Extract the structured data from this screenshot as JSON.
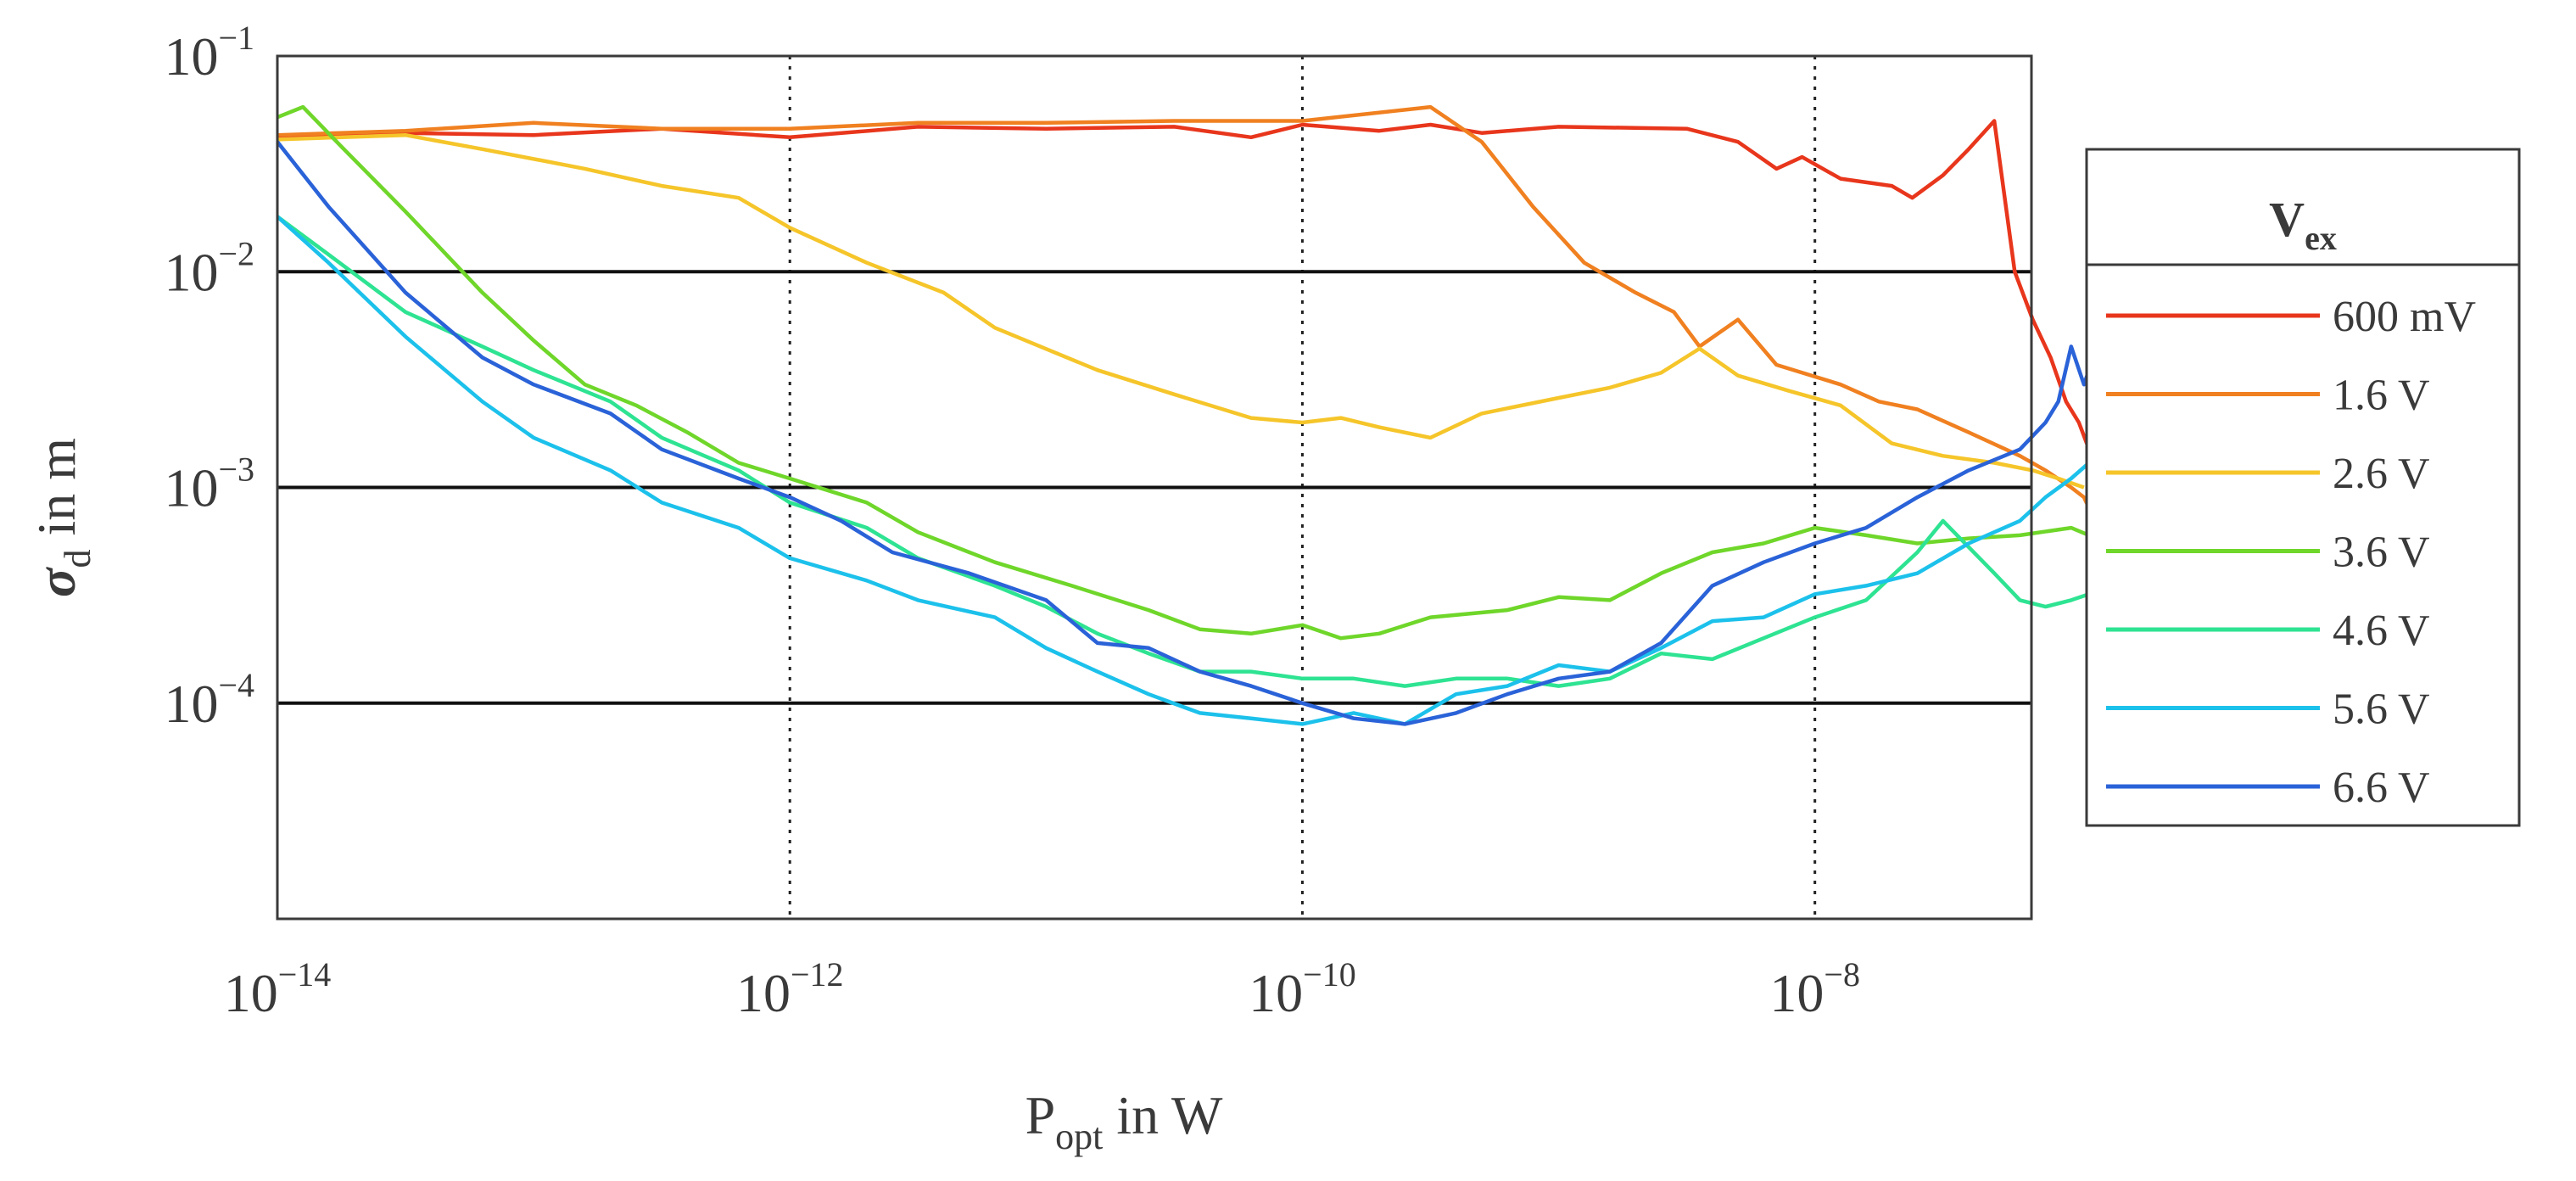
{
  "chart_data": {
    "type": "line",
    "title": "",
    "xlabel": {
      "main": "P",
      "sub": "opt",
      "rest": " in W"
    },
    "ylabel": {
      "sym": "σ",
      "sub": "d",
      "rest": " in m"
    },
    "x_scale": "log",
    "y_scale": "log",
    "xlim": [
      1e-14,
      7e-08
    ],
    "ylim": [
      1e-05,
      0.1
    ],
    "x_ticks": [
      {
        "value": 1e-14,
        "base": "10",
        "exp": "−14"
      },
      {
        "value": 1e-12,
        "base": "10",
        "exp": "−12"
      },
      {
        "value": 1e-10,
        "base": "10",
        "exp": "−10"
      },
      {
        "value": 1e-08,
        "base": "10",
        "exp": "−8"
      }
    ],
    "y_ticks": [
      {
        "value": 0.0001,
        "base": "10",
        "exp": "−4"
      },
      {
        "value": 0.001,
        "base": "10",
        "exp": "−3"
      },
      {
        "value": 0.01,
        "base": "10",
        "exp": "−2"
      },
      {
        "value": 0.1,
        "base": "10",
        "exp": "−1"
      }
    ],
    "grid": {
      "x": "dotted",
      "y": "solid"
    },
    "legend": {
      "position": "right-outside",
      "title_main": "V",
      "title_sub": "ex",
      "entries": [
        "600 mV",
        "1.6 V",
        "2.6 V",
        "3.6 V",
        "4.6 V",
        "5.6 V",
        "6.6 V"
      ]
    },
    "series": [
      {
        "name": "600 mV",
        "color": "#e8361c",
        "points": [
          [
            -14.0,
            0.042
          ],
          [
            -13.5,
            0.044
          ],
          [
            -13.0,
            0.043
          ],
          [
            -12.5,
            0.046
          ],
          [
            -12.0,
            0.042
          ],
          [
            -11.5,
            0.047
          ],
          [
            -11.0,
            0.046
          ],
          [
            -10.5,
            0.047
          ],
          [
            -10.2,
            0.042
          ],
          [
            -10.0,
            0.048
          ],
          [
            -9.7,
            0.045
          ],
          [
            -9.5,
            0.048
          ],
          [
            -9.3,
            0.044
          ],
          [
            -9.0,
            0.047
          ],
          [
            -8.5,
            0.046
          ],
          [
            -8.3,
            0.04
          ],
          [
            -8.15,
            0.03
          ],
          [
            -8.05,
            0.034
          ],
          [
            -7.9,
            0.027
          ],
          [
            -7.7,
            0.025
          ],
          [
            -7.62,
            0.022
          ],
          [
            -7.5,
            0.028
          ],
          [
            -7.4,
            0.037
          ],
          [
            -7.3,
            0.05
          ],
          [
            -7.22,
            0.01
          ],
          [
            -7.15,
            0.006
          ],
          [
            -7.08,
            0.004
          ],
          [
            -7.02,
            0.0025
          ],
          [
            -6.97,
            0.002
          ],
          [
            -6.93,
            0.0015
          ]
        ]
      },
      {
        "name": "1.6 V",
        "color": "#f08020",
        "points": [
          [
            -14.0,
            0.043
          ],
          [
            -13.5,
            0.045
          ],
          [
            -13.0,
            0.049
          ],
          [
            -12.5,
            0.046
          ],
          [
            -12.0,
            0.046
          ],
          [
            -11.5,
            0.049
          ],
          [
            -11.0,
            0.049
          ],
          [
            -10.5,
            0.05
          ],
          [
            -10.0,
            0.05
          ],
          [
            -9.5,
            0.058
          ],
          [
            -9.3,
            0.04
          ],
          [
            -9.1,
            0.02
          ],
          [
            -8.9,
            0.011
          ],
          [
            -8.7,
            0.008
          ],
          [
            -8.55,
            0.0065
          ],
          [
            -8.45,
            0.0045
          ],
          [
            -8.3,
            0.006
          ],
          [
            -8.15,
            0.0037
          ],
          [
            -7.9,
            0.003
          ],
          [
            -7.75,
            0.0025
          ],
          [
            -7.6,
            0.0023
          ],
          [
            -7.4,
            0.0018
          ],
          [
            -7.2,
            0.0014
          ],
          [
            -7.1,
            0.0012
          ],
          [
            -7.0,
            0.001
          ],
          [
            -6.95,
            0.0009
          ],
          [
            -6.93,
            0.0008
          ]
        ]
      },
      {
        "name": "2.6 V",
        "color": "#f5c52a",
        "points": [
          [
            -14.0,
            0.041
          ],
          [
            -13.5,
            0.043
          ],
          [
            -13.2,
            0.037
          ],
          [
            -12.8,
            0.03
          ],
          [
            -12.5,
            0.025
          ],
          [
            -12.2,
            0.022
          ],
          [
            -12.0,
            0.016
          ],
          [
            -11.7,
            0.011
          ],
          [
            -11.4,
            0.008
          ],
          [
            -11.2,
            0.0055
          ],
          [
            -10.8,
            0.0035
          ],
          [
            -10.5,
            0.0027
          ],
          [
            -10.2,
            0.0021
          ],
          [
            -10.0,
            0.002
          ],
          [
            -9.85,
            0.0021
          ],
          [
            -9.7,
            0.0019
          ],
          [
            -9.5,
            0.0017
          ],
          [
            -9.3,
            0.0022
          ],
          [
            -9.0,
            0.0026
          ],
          [
            -8.8,
            0.0029
          ],
          [
            -8.6,
            0.0034
          ],
          [
            -8.45,
            0.0044
          ],
          [
            -8.3,
            0.0033
          ],
          [
            -8.1,
            0.0028
          ],
          [
            -7.9,
            0.0024
          ],
          [
            -7.7,
            0.0016
          ],
          [
            -7.5,
            0.0014
          ],
          [
            -7.3,
            0.0013
          ],
          [
            -7.15,
            0.0012
          ],
          [
            -7.05,
            0.0011
          ],
          [
            -6.95,
            0.001
          ]
        ]
      },
      {
        "name": "3.6 V",
        "color": "#6fd62a",
        "points": [
          [
            -14.0,
            0.052
          ],
          [
            -13.9,
            0.058
          ],
          [
            -13.75,
            0.038
          ],
          [
            -13.5,
            0.019
          ],
          [
            -13.2,
            0.008
          ],
          [
            -13.0,
            0.0048
          ],
          [
            -12.8,
            0.003
          ],
          [
            -12.6,
            0.0024
          ],
          [
            -12.4,
            0.0018
          ],
          [
            -12.2,
            0.0013
          ],
          [
            -12.0,
            0.0011
          ],
          [
            -11.7,
            0.00085
          ],
          [
            -11.5,
            0.00062
          ],
          [
            -11.2,
            0.00045
          ],
          [
            -10.9,
            0.00035
          ],
          [
            -10.6,
            0.00027
          ],
          [
            -10.4,
            0.00022
          ],
          [
            -10.2,
            0.00021
          ],
          [
            -10.0,
            0.00023
          ],
          [
            -9.85,
            0.0002
          ],
          [
            -9.7,
            0.00021
          ],
          [
            -9.5,
            0.00025
          ],
          [
            -9.2,
            0.00027
          ],
          [
            -9.0,
            0.00031
          ],
          [
            -8.8,
            0.0003
          ],
          [
            -8.6,
            0.0004
          ],
          [
            -8.4,
            0.0005
          ],
          [
            -8.2,
            0.00055
          ],
          [
            -8.0,
            0.00065
          ],
          [
            -7.8,
            0.0006
          ],
          [
            -7.6,
            0.00055
          ],
          [
            -7.4,
            0.00058
          ],
          [
            -7.2,
            0.0006
          ],
          [
            -7.0,
            0.00065
          ],
          [
            -6.93,
            0.0006
          ]
        ]
      },
      {
        "name": "4.6 V",
        "color": "#2ee392",
        "points": [
          [
            -14.0,
            0.018
          ],
          [
            -13.8,
            0.012
          ],
          [
            -13.5,
            0.0065
          ],
          [
            -13.2,
            0.0045
          ],
          [
            -13.0,
            0.0035
          ],
          [
            -12.7,
            0.0025
          ],
          [
            -12.5,
            0.0017
          ],
          [
            -12.2,
            0.0012
          ],
          [
            -12.0,
            0.00085
          ],
          [
            -11.7,
            0.00065
          ],
          [
            -11.5,
            0.00047
          ],
          [
            -11.2,
            0.00035
          ],
          [
            -11.0,
            0.00028
          ],
          [
            -10.8,
            0.00021
          ],
          [
            -10.6,
            0.00017
          ],
          [
            -10.4,
            0.00014
          ],
          [
            -10.2,
            0.00014
          ],
          [
            -10.0,
            0.00013
          ],
          [
            -9.8,
            0.00013
          ],
          [
            -9.6,
            0.00012
          ],
          [
            -9.4,
            0.00013
          ],
          [
            -9.2,
            0.00013
          ],
          [
            -9.0,
            0.00012
          ],
          [
            -8.8,
            0.00013
          ],
          [
            -8.6,
            0.00017
          ],
          [
            -8.4,
            0.00016
          ],
          [
            -8.2,
            0.0002
          ],
          [
            -8.0,
            0.00025
          ],
          [
            -7.8,
            0.0003
          ],
          [
            -7.6,
            0.0005
          ],
          [
            -7.5,
            0.0007
          ],
          [
            -7.3,
            0.0004
          ],
          [
            -7.2,
            0.0003
          ],
          [
            -7.1,
            0.00028
          ],
          [
            -7.0,
            0.0003
          ],
          [
            -6.93,
            0.00032
          ]
        ]
      },
      {
        "name": "5.6 V",
        "color": "#1cc1eb",
        "points": [
          [
            -14.0,
            0.018
          ],
          [
            -13.8,
            0.011
          ],
          [
            -13.5,
            0.005
          ],
          [
            -13.2,
            0.0025
          ],
          [
            -13.0,
            0.0017
          ],
          [
            -12.7,
            0.0012
          ],
          [
            -12.5,
            0.00085
          ],
          [
            -12.2,
            0.00065
          ],
          [
            -12.0,
            0.00047
          ],
          [
            -11.7,
            0.00037
          ],
          [
            -11.5,
            0.0003
          ],
          [
            -11.2,
            0.00025
          ],
          [
            -11.0,
            0.00018
          ],
          [
            -10.8,
            0.00014
          ],
          [
            -10.6,
            0.00011
          ],
          [
            -10.4,
            9e-05
          ],
          [
            -10.2,
            8.5e-05
          ],
          [
            -10.0,
            8e-05
          ],
          [
            -9.8,
            9e-05
          ],
          [
            -9.6,
            8e-05
          ],
          [
            -9.4,
            0.00011
          ],
          [
            -9.2,
            0.00012
          ],
          [
            -9.0,
            0.00015
          ],
          [
            -8.8,
            0.00014
          ],
          [
            -8.6,
            0.00018
          ],
          [
            -8.4,
            0.00024
          ],
          [
            -8.2,
            0.00025
          ],
          [
            -8.0,
            0.00032
          ],
          [
            -7.8,
            0.00035
          ],
          [
            -7.6,
            0.0004
          ],
          [
            -7.4,
            0.00055
          ],
          [
            -7.2,
            0.0007
          ],
          [
            -7.1,
            0.0009
          ],
          [
            -7.0,
            0.0011
          ],
          [
            -6.93,
            0.0013
          ]
        ]
      },
      {
        "name": "6.6 V",
        "color": "#2a62d8",
        "points": [
          [
            -14.0,
            0.04
          ],
          [
            -13.8,
            0.02
          ],
          [
            -13.5,
            0.008
          ],
          [
            -13.2,
            0.004
          ],
          [
            -13.0,
            0.003
          ],
          [
            -12.7,
            0.0022
          ],
          [
            -12.5,
            0.0015
          ],
          [
            -12.2,
            0.0011
          ],
          [
            -12.0,
            0.0009
          ],
          [
            -11.8,
            0.0007
          ],
          [
            -11.6,
            0.0005
          ],
          [
            -11.3,
            0.0004
          ],
          [
            -11.0,
            0.0003
          ],
          [
            -10.8,
            0.00019
          ],
          [
            -10.6,
            0.00018
          ],
          [
            -10.4,
            0.00014
          ],
          [
            -10.2,
            0.00012
          ],
          [
            -10.0,
            0.0001
          ],
          [
            -9.8,
            8.5e-05
          ],
          [
            -9.6,
            8e-05
          ],
          [
            -9.4,
            9e-05
          ],
          [
            -9.2,
            0.00011
          ],
          [
            -9.0,
            0.00013
          ],
          [
            -8.8,
            0.00014
          ],
          [
            -8.6,
            0.00019
          ],
          [
            -8.4,
            0.00035
          ],
          [
            -8.2,
            0.00045
          ],
          [
            -8.0,
            0.00055
          ],
          [
            -7.8,
            0.00065
          ],
          [
            -7.6,
            0.0009
          ],
          [
            -7.4,
            0.0012
          ],
          [
            -7.2,
            0.0015
          ],
          [
            -7.1,
            0.002
          ],
          [
            -7.05,
            0.0025
          ],
          [
            -7.0,
            0.0045
          ],
          [
            -6.95,
            0.003
          ],
          [
            -6.93,
            0.0035
          ]
        ]
      }
    ]
  }
}
